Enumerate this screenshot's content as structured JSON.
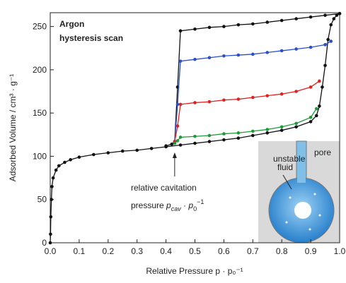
{
  "chart_data": {
    "type": "line",
    "title_lines": [
      "Argon",
      "hysteresis scan"
    ],
    "x_label": "Relative Pressure p · p₀⁻¹",
    "y_label": "Adsorbed Volume / cm³ · g⁻¹",
    "annotation": {
      "line1": "relative cavitation",
      "line2": [
        "pressure ",
        "p",
        "cav",
        " · p",
        "0",
        "−1"
      ],
      "x": 0.43
    },
    "inset": {
      "fluid_label": [
        "unstable",
        "fluid"
      ],
      "pore_label": "pore"
    },
    "xlim": [
      0,
      1
    ],
    "ylim": [
      0,
      266
    ],
    "xticks": [
      {
        "value": 0,
        "label": "0.0"
      },
      0.1,
      0.2,
      0.3,
      0.4,
      0.5,
      0.6,
      0.7,
      0.8,
      0.9,
      {
        "value": 1,
        "label": "1.0"
      }
    ],
    "yticks": [
      0,
      50,
      100,
      150,
      200,
      250
    ],
    "series": [
      {
        "color": "#111111",
        "x": [
          0,
          0.001,
          0.002,
          0.004,
          0.006,
          0.01,
          0.02,
          0.03,
          0.05,
          0.07,
          0.1,
          0.15,
          0.2,
          0.25,
          0.3,
          0.35,
          0.4,
          0.45,
          0.5,
          0.55,
          0.6,
          0.65,
          0.7,
          0.75,
          0.8,
          0.85,
          0.9,
          0.92,
          0.93,
          0.94,
          0.95,
          0.96,
          0.97,
          0.98,
          0.99,
          1.0
        ],
        "values": [
          0,
          10,
          30,
          50,
          65,
          75,
          84,
          89,
          93,
          96,
          99,
          102,
          104,
          106,
          107,
          109,
          111,
          113,
          115,
          117,
          119,
          121,
          124,
          127,
          130,
          134,
          140,
          147,
          158,
          180,
          205,
          235,
          252,
          259,
          263,
          265
        ]
      },
      {
        "color": "#111111",
        "x": [
          1.0,
          0.95,
          0.9,
          0.85,
          0.8,
          0.75,
          0.7,
          0.65,
          0.6,
          0.55,
          0.5,
          0.45,
          0.44,
          0.43,
          0.42,
          0.4
        ],
        "values": [
          265,
          263,
          261,
          259,
          257,
          255,
          253,
          252,
          250,
          249,
          247,
          245,
          180,
          117,
          114,
          112
        ]
      },
      {
        "color": "#2a4fc9",
        "x": [
          0.97,
          0.95,
          0.9,
          0.85,
          0.8,
          0.75,
          0.7,
          0.65,
          0.6,
          0.55,
          0.5,
          0.45,
          0.44,
          0.43
        ],
        "values": [
          233,
          229,
          226,
          224,
          222,
          220,
          218,
          217,
          216,
          214,
          212,
          210,
          160,
          117
        ]
      },
      {
        "color": "#e02020",
        "x": [
          0.93,
          0.9,
          0.85,
          0.8,
          0.75,
          0.7,
          0.65,
          0.6,
          0.55,
          0.5,
          0.45,
          0.44,
          0.43
        ],
        "values": [
          187,
          180,
          175,
          172,
          170,
          168,
          166,
          165,
          163,
          162,
          160,
          135,
          117
        ]
      },
      {
        "color": "#1f9a3a",
        "x": [
          0.92,
          0.9,
          0.85,
          0.8,
          0.75,
          0.7,
          0.65,
          0.6,
          0.55,
          0.5,
          0.45,
          0.44,
          0.43
        ],
        "values": [
          155,
          145,
          138,
          134,
          131,
          129,
          127,
          126,
          124,
          123,
          122,
          118,
          115
        ]
      }
    ]
  }
}
